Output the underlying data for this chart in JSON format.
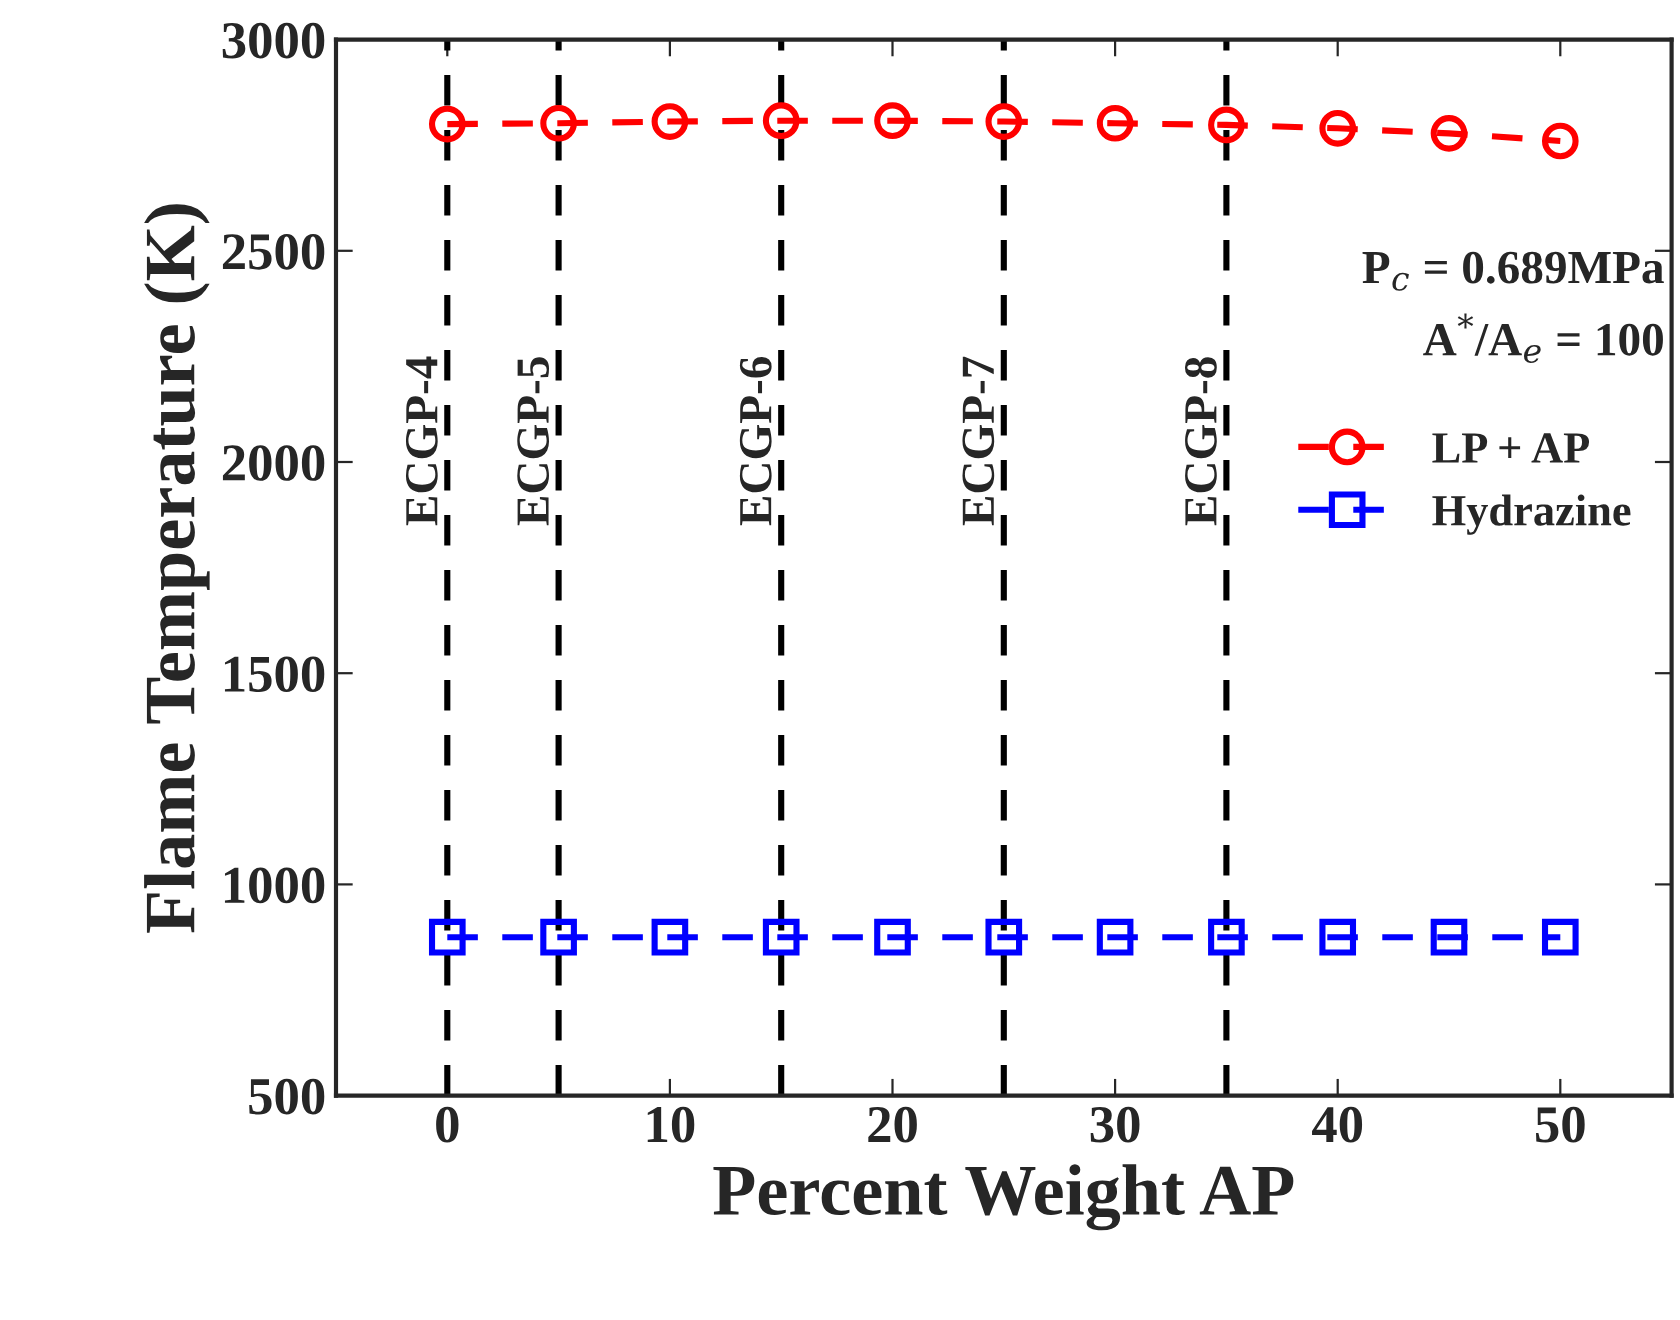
{
  "chart_data": {
    "type": "line",
    "xlabel": "Percent Weight AP",
    "ylabel": "Flame Temperature (K)",
    "x": [
      0,
      5,
      10,
      15,
      20,
      25,
      30,
      35,
      40,
      45,
      50
    ],
    "series": [
      {
        "name": "LP + AP",
        "color": "#ff0000",
        "marker": "circle",
        "values": [
          2800,
          2802,
          2806,
          2808,
          2808,
          2806,
          2802,
          2798,
          2790,
          2778,
          2760
        ]
      },
      {
        "name": "Hydrazine",
        "color": "#0000ff",
        "marker": "square",
        "values": [
          875,
          875,
          875,
          875,
          875,
          875,
          875,
          875,
          875,
          875,
          875
        ]
      }
    ],
    "line_style": "dashed",
    "xlim": [
      -5,
      55
    ],
    "xticks": [
      0,
      10,
      20,
      30,
      40,
      50
    ],
    "ylim": [
      500,
      3000
    ],
    "yticks": [
      500,
      1000,
      1500,
      2000,
      2500,
      3000
    ],
    "ref_lines": [
      {
        "axis": "x",
        "value": 0,
        "label": "ECGP-4",
        "color": "#000000",
        "line_style": "dashed"
      },
      {
        "axis": "x",
        "value": 5,
        "label": "ECGP-5",
        "color": "#000000",
        "line_style": "dashed"
      },
      {
        "axis": "x",
        "value": 15,
        "label": "ECGP-6",
        "color": "#000000",
        "line_style": "dashed"
      },
      {
        "axis": "x",
        "value": 25,
        "label": "ECGP-7",
        "color": "#000000",
        "line_style": "dashed"
      },
      {
        "axis": "x",
        "value": 35,
        "label": "ECGP-8",
        "color": "#000000",
        "line_style": "dashed"
      }
    ],
    "annotations": [
      "P$_{c}$ = 0.689MPa",
      "A$^{*}$/A$_{e}$ = 100"
    ],
    "legend": "right",
    "grid": false
  }
}
